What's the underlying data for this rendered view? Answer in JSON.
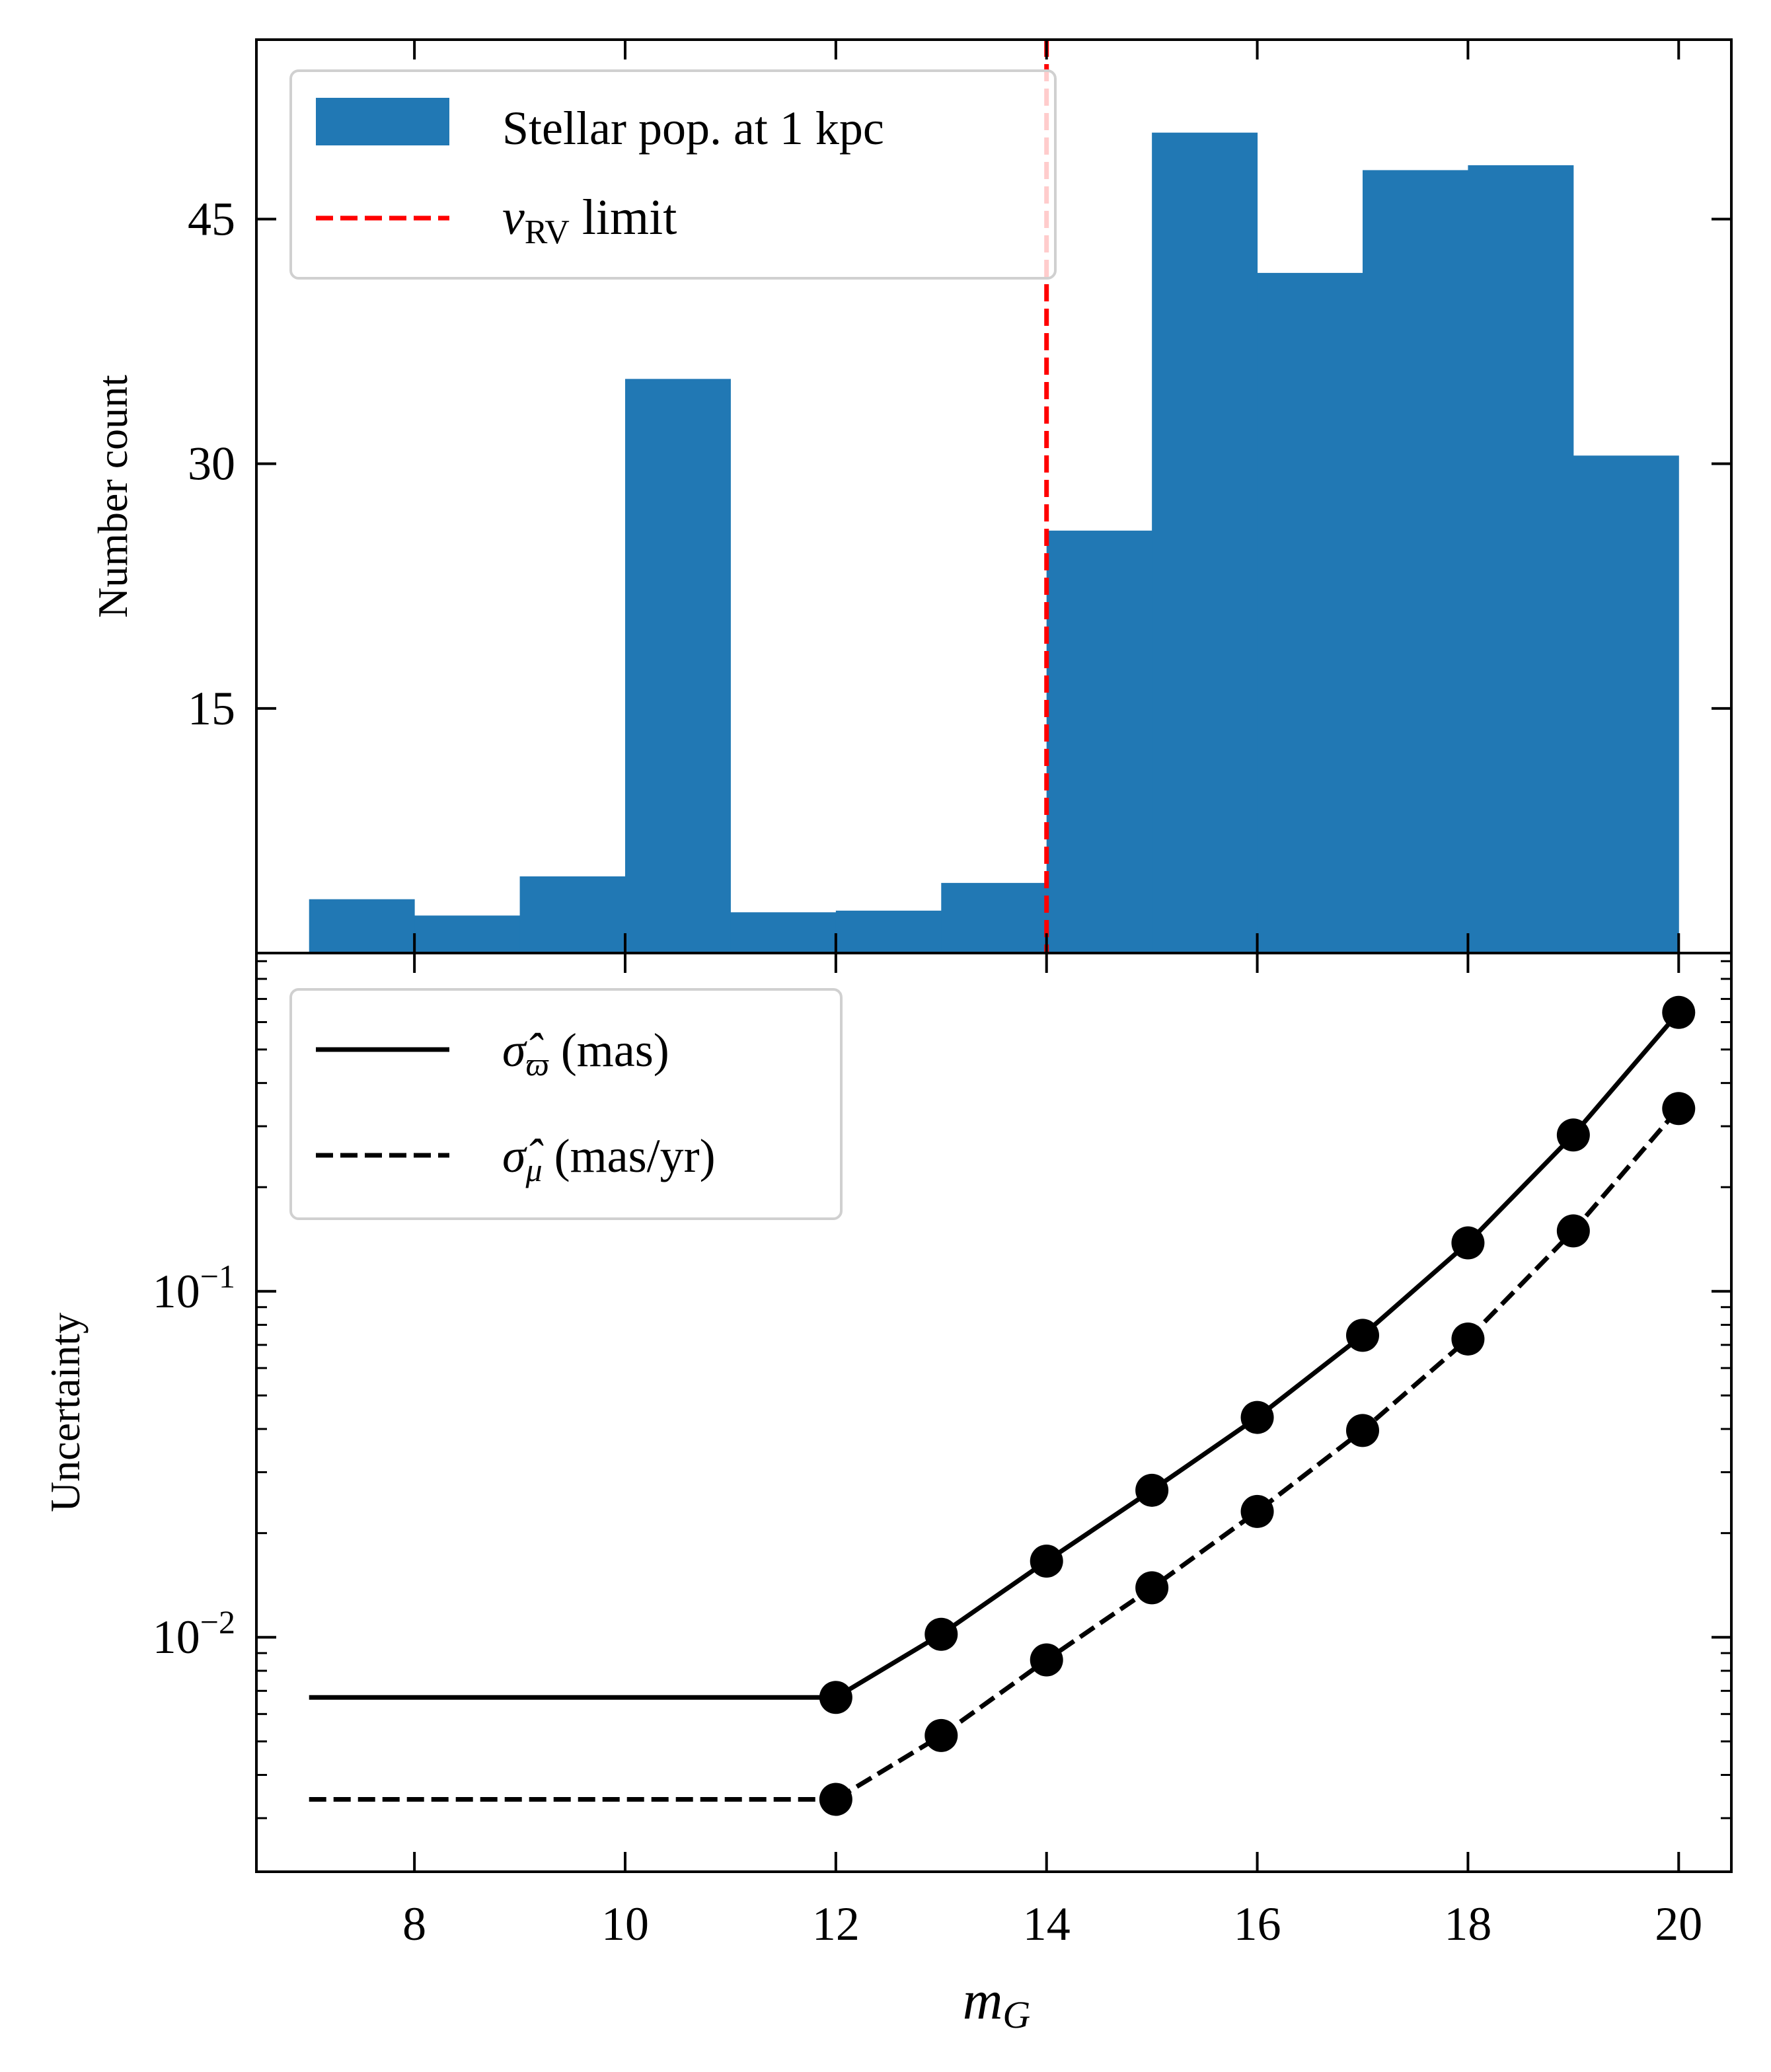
{
  "chart_data": [
    {
      "type": "bar",
      "panel": "top",
      "ylabel": "Number count",
      "xlim": [
        6.5,
        20.5
      ],
      "ylim": [
        0,
        56
      ],
      "yticks": [
        15,
        30,
        45
      ],
      "bin_edges": [
        7,
        8,
        9,
        10,
        11,
        12,
        13,
        14,
        15,
        16,
        17,
        18,
        19,
        20
      ],
      "values": [
        3.3,
        2.3,
        4.7,
        35.2,
        2.5,
        2.6,
        4.3,
        25.9,
        50.3,
        41.7,
        48.0,
        48.3,
        30.5
      ],
      "vline_x": 14,
      "legend": {
        "position": "upper-left",
        "entries": [
          {
            "label": "Stellar pop. at 1 kpc"
          },
          {
            "label_main": "ν",
            "label_sub": "RV",
            "label_rest": " limit"
          }
        ]
      },
      "colors": {
        "bars": "#2178b4",
        "vline": "#ff0000"
      }
    },
    {
      "type": "line",
      "panel": "bottom",
      "ylabel": "Uncertainty",
      "xlabel_main": "m",
      "xlabel_sub": "G",
      "xlim": [
        6.5,
        20.5
      ],
      "yscale": "log",
      "ylim": [
        0.0021,
        0.95
      ],
      "xticks": [
        "8",
        "10",
        "12",
        "14",
        "16",
        "18",
        "20"
      ],
      "yticks": [
        {
          "value": 0.1,
          "base": "10",
          "exp": "−1"
        },
        {
          "value": 0.01,
          "base": "10",
          "exp": "−2"
        }
      ],
      "series": [
        {
          "name": "sigma_parallax",
          "label_hat": "σ̂",
          "label_sub": "ϖ",
          "label_rest": " (mas)",
          "style": "solid",
          "flat": {
            "x": [
              7,
              12
            ],
            "y": 0.0067
          },
          "x": [
            12,
            13,
            14,
            15,
            16,
            17,
            18,
            19,
            20
          ],
          "values": [
            0.0067,
            0.0102,
            0.0166,
            0.0266,
            0.0432,
            0.0746,
            0.138,
            0.283,
            0.64
          ]
        },
        {
          "name": "sigma_pm",
          "label_hat": "σ̂",
          "label_sub": "μ",
          "label_rest": " (mas/yr)",
          "style": "dashed",
          "flat": {
            "x": [
              7,
              12
            ],
            "y": 0.0034
          },
          "x": [
            12,
            13,
            14,
            15,
            16,
            17,
            18,
            19,
            20
          ],
          "values": [
            0.0034,
            0.0052,
            0.0086,
            0.0139,
            0.0231,
            0.0396,
            0.0728,
            0.1495,
            0.3375
          ]
        }
      ]
    }
  ]
}
